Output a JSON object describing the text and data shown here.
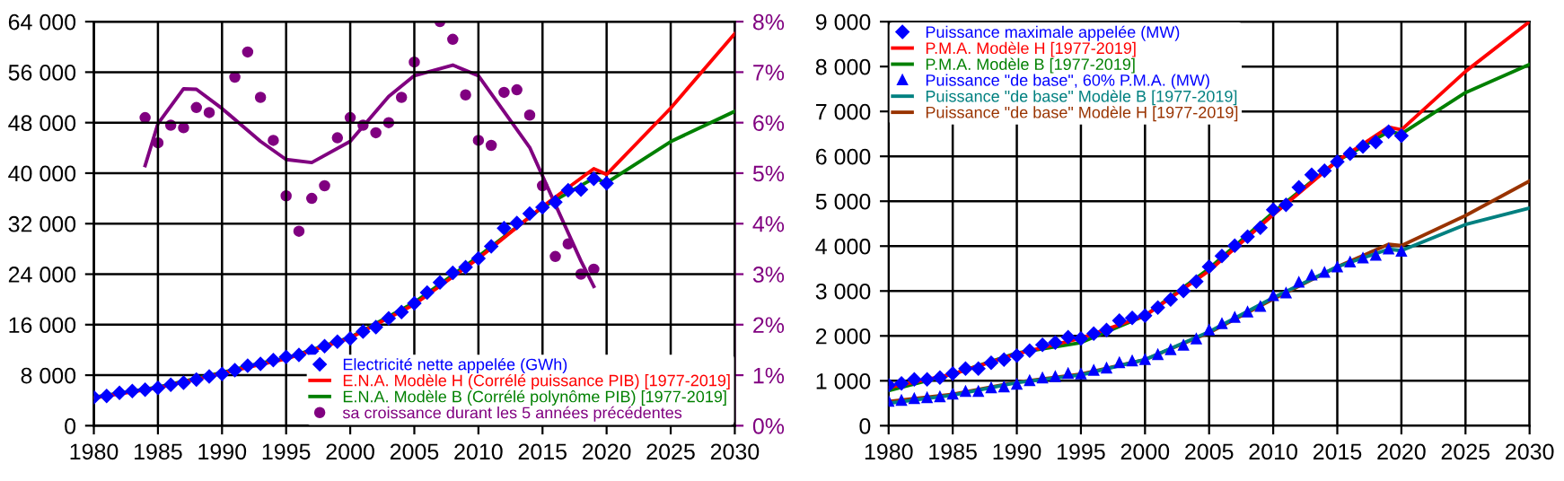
{
  "chart_data": [
    {
      "type": "line",
      "xlim": [
        1980,
        2030
      ],
      "xticks": [
        1980,
        1985,
        1990,
        1995,
        2000,
        2005,
        2010,
        2015,
        2020,
        2025,
        2030
      ],
      "ylim": [
        0,
        64000
      ],
      "yticks": [
        {
          "value": 0,
          "label": "0"
        },
        {
          "value": 8000,
          "label": "8 000"
        },
        {
          "value": 16000,
          "label": "16 000"
        },
        {
          "value": 24000,
          "label": "24 000"
        },
        {
          "value": 32000,
          "label": "32 000"
        },
        {
          "value": 40000,
          "label": "40 000"
        },
        {
          "value": 48000,
          "label": "48 000"
        },
        {
          "value": 56000,
          "label": "56 000"
        },
        {
          "value": 64000,
          "label": "64 000"
        }
      ],
      "y2lim": [
        0,
        8
      ],
      "y2ticks": [
        {
          "value": 0,
          "label": "0%"
        },
        {
          "value": 1,
          "label": "1%"
        },
        {
          "value": 2,
          "label": "2%"
        },
        {
          "value": 3,
          "label": "3%"
        },
        {
          "value": 4,
          "label": "4%"
        },
        {
          "value": 5,
          "label": "5%"
        },
        {
          "value": 6,
          "label": "6%"
        },
        {
          "value": 7,
          "label": "7%"
        },
        {
          "value": 8,
          "label": "8%"
        }
      ],
      "grid": true,
      "legend": "bottom",
      "series": [
        {
          "name": "Electricité nette appelée (GWh)",
          "type": "scatter",
          "marker": "diamond",
          "color": "#0000ff",
          "x": [
            1980,
            1981,
            1982,
            1983,
            1984,
            1985,
            1986,
            1987,
            1988,
            1989,
            1990,
            1991,
            1992,
            1993,
            1994,
            1995,
            1996,
            1997,
            1998,
            1999,
            2000,
            2001,
            2002,
            2003,
            2004,
            2005,
            2006,
            2007,
            2008,
            2009,
            2010,
            2011,
            2012,
            2013,
            2014,
            2015,
            2016,
            2017,
            2018,
            2019,
            2020
          ],
          "values": [
            4500,
            4700,
            5200,
            5500,
            5700,
            6000,
            6500,
            6800,
            7300,
            7800,
            8200,
            8800,
            9500,
            9800,
            10400,
            10900,
            11200,
            11800,
            12600,
            13300,
            13800,
            14900,
            15600,
            17000,
            18000,
            19400,
            21100,
            22700,
            24200,
            25100,
            26500,
            28400,
            31300,
            32100,
            33600,
            34600,
            35400,
            37300,
            37400,
            39100,
            38400
          ]
        },
        {
          "name": "E.N.A. Modèle H (Corrélé puissance PIB) [1977-2019]",
          "color": "#ff0000",
          "x": [
            1980,
            1985,
            1990,
            1993,
            1995,
            2000,
            2005,
            2010,
            2015,
            2019,
            2020,
            2025,
            2030
          ],
          "values": [
            4400,
            6000,
            8300,
            9700,
            10600,
            13900,
            19200,
            26500,
            34700,
            40700,
            39800,
            50300,
            62100
          ]
        },
        {
          "name": "E.N.A. Modèle B (Corrélé polynôme PIB) [1977-2019]",
          "color": "#008000",
          "x": [
            1980,
            1985,
            1990,
            1993,
            1995,
            2000,
            2005,
            2010,
            2015,
            2019,
            2020,
            2025,
            2030
          ],
          "values": [
            4500,
            6100,
            8400,
            9900,
            10700,
            14000,
            19500,
            26800,
            34600,
            39200,
            38500,
            45000,
            49800
          ]
        },
        {
          "name": "sa croissance durant les 5 années précédentes",
          "type": "scatter",
          "marker": "circle",
          "axis": "y2",
          "color": "#800080",
          "x": [
            1984,
            1985,
            1986,
            1987,
            1988,
            1989,
            1991,
            1992,
            1993,
            1994,
            1995,
            1996,
            1997,
            1998,
            1999,
            2000,
            2001,
            2002,
            2003,
            2004,
            2005,
            2007,
            2008,
            2009,
            2010,
            2011,
            2012,
            2013,
            2014,
            2015,
            2016,
            2017,
            2018,
            2019
          ],
          "values": [
            6.1,
            5.6,
            5.95,
            5.9,
            6.3,
            6.2,
            6.9,
            7.4,
            6.5,
            5.65,
            4.55,
            3.85,
            4.5,
            4.75,
            5.7,
            6.1,
            5.95,
            5.8,
            6.0,
            6.5,
            7.2,
            8.0,
            7.65,
            6.55,
            5.65,
            5.55,
            6.6,
            6.65,
            6.15,
            4.75,
            3.35,
            3.6,
            3.0,
            3.1
          ]
        },
        {
          "axis": "y2",
          "color": "#800080",
          "x": [
            1984,
            1985,
            1987,
            1988,
            1990,
            1993,
            1995,
            1997,
            2000,
            2003,
            2005,
            2008,
            2010,
            2012,
            2014,
            2016,
            2018,
            2019
          ],
          "values": [
            5.15,
            5.98,
            6.67,
            6.66,
            6.28,
            5.63,
            5.27,
            5.21,
            5.63,
            6.52,
            6.93,
            7.14,
            6.93,
            6.22,
            5.51,
            4.38,
            3.26,
            2.76
          ]
        }
      ]
    },
    {
      "type": "line",
      "xlim": [
        1980,
        2030
      ],
      "xticks": [
        1980,
        1985,
        1990,
        1995,
        2000,
        2005,
        2010,
        2015,
        2020,
        2025,
        2030
      ],
      "ylim": [
        0,
        9000
      ],
      "yticks": [
        {
          "value": 0,
          "label": "0"
        },
        {
          "value": 1000,
          "label": "1 000"
        },
        {
          "value": 2000,
          "label": "2 000"
        },
        {
          "value": 3000,
          "label": "3 000"
        },
        {
          "value": 4000,
          "label": "4 000"
        },
        {
          "value": 5000,
          "label": "5 000"
        },
        {
          "value": 6000,
          "label": "6 000"
        },
        {
          "value": 7000,
          "label": "7 000"
        },
        {
          "value": 8000,
          "label": "8 000"
        },
        {
          "value": 9000,
          "label": "9 000"
        }
      ],
      "grid": true,
      "legend": "top left",
      "series": [
        {
          "name": "Puissance maximale appelée (MW)",
          "type": "scatter",
          "marker": "diamond",
          "color": "#0000ff",
          "x": [
            1980,
            1981,
            1982,
            1983,
            1984,
            1985,
            1986,
            1987,
            1988,
            1989,
            1990,
            1991,
            1992,
            1993,
            1994,
            1995,
            1996,
            1997,
            1998,
            1999,
            2000,
            2001,
            2002,
            2003,
            2004,
            2005,
            2006,
            2007,
            2008,
            2009,
            2010,
            2011,
            2012,
            2013,
            2014,
            2015,
            2016,
            2017,
            2018,
            2019,
            2020
          ],
          "values": [
            900,
            940,
            1030,
            1030,
            1070,
            1160,
            1270,
            1270,
            1400,
            1470,
            1560,
            1670,
            1800,
            1850,
            1970,
            1940,
            2050,
            2130,
            2340,
            2400,
            2450,
            2630,
            2810,
            3000,
            3210,
            3540,
            3780,
            4010,
            4210,
            4410,
            4810,
            4920,
            5310,
            5590,
            5680,
            5880,
            6060,
            6220,
            6320,
            6550,
            6460
          ]
        },
        {
          "name": "P.M.A. Modèle H [1977-2019]",
          "color": "#ff0000",
          "x": [
            1980,
            1985,
            1990,
            1995,
            2000,
            2005,
            2010,
            2015,
            2019,
            2020,
            2025,
            2030
          ],
          "values": [
            850,
            1150,
            1600,
            1950,
            2450,
            3450,
            4700,
            5900,
            6650,
            6590,
            7890,
            9000
          ]
        },
        {
          "name": "P.M.A. Modèle B [1977-2019]",
          "color": "#008000",
          "x": [
            1980,
            1985,
            1990,
            1995,
            2000,
            2005,
            2010,
            2015,
            2019,
            2020,
            2025,
            2030
          ],
          "values": [
            780,
            1150,
            1620,
            1850,
            2450,
            3500,
            4750,
            5900,
            6550,
            6500,
            7420,
            8050
          ]
        },
        {
          "name": "Puissance \"de base\", 60% P.M.A. (MW)",
          "type": "scatter",
          "marker": "triangle",
          "color": "#0000ff",
          "x": [
            1980,
            1981,
            1982,
            1983,
            1984,
            1985,
            1986,
            1987,
            1988,
            1989,
            1990,
            1991,
            1992,
            1993,
            1994,
            1995,
            1996,
            1997,
            1998,
            1999,
            2000,
            2001,
            2002,
            2003,
            2004,
            2005,
            2006,
            2007,
            2008,
            2009,
            2010,
            2011,
            2012,
            2013,
            2014,
            2015,
            2016,
            2017,
            2018,
            2019,
            2020
          ],
          "values": [
            540,
            560,
            600,
            620,
            640,
            700,
            760,
            760,
            840,
            860,
            920,
            1000,
            1060,
            1090,
            1160,
            1150,
            1230,
            1280,
            1400,
            1440,
            1470,
            1580,
            1690,
            1790,
            1930,
            2130,
            2270,
            2410,
            2530,
            2650,
            2890,
            2950,
            3190,
            3350,
            3410,
            3530,
            3640,
            3730,
            3790,
            3930,
            3880
          ]
        },
        {
          "name": "Puissance \"de base\" Modèle B [1977-2019]",
          "color": "#008080",
          "x": [
            1980,
            1985,
            1990,
            1995,
            2000,
            2005,
            2010,
            2015,
            2019,
            2020,
            2025,
            2030
          ],
          "values": [
            500,
            680,
            960,
            1130,
            1470,
            2090,
            2850,
            3540,
            3930,
            3900,
            4480,
            4850
          ]
        },
        {
          "name": "Puissance \"de base\" Modèle H [1977-2019]",
          "color": "#993300",
          "x": [
            1980,
            1985,
            1990,
            1995,
            2000,
            2005,
            2010,
            2015,
            2019,
            2020,
            2025,
            2030
          ],
          "values": [
            540,
            700,
            970,
            1150,
            1470,
            2070,
            2820,
            3540,
            4040,
            4010,
            4680,
            5450
          ]
        }
      ]
    }
  ]
}
